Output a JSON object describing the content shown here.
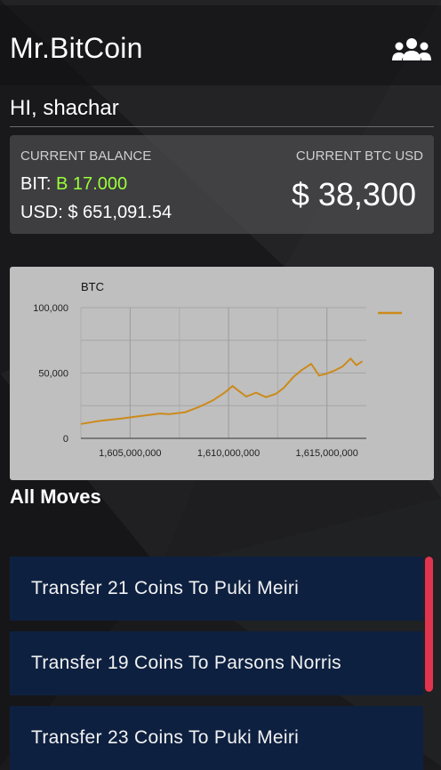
{
  "app": {
    "title": "Mr.BitCoin",
    "users_icon": "users-icon"
  },
  "greeting": "HI, shachar",
  "balance": {
    "heading": "CURRENT BALANCE",
    "bit_label": "BIT: ",
    "bit_value": "B 17.000",
    "usd_text": "USD: $ 651,091.54",
    "rate_heading": "CURRENT BTC USD",
    "rate_value": "$ 38,300"
  },
  "chart_data": {
    "type": "line",
    "title": "BTC",
    "series_color": "#cc8a1a",
    "xlim": [
      1602500000,
      1617000000
    ],
    "ylim": [
      0,
      100000
    ],
    "x_ticks": [
      1605000000,
      1610000000,
      1615000000
    ],
    "x_tick_labels": [
      "1,605,000,000",
      "1,610,000,000",
      "1,615,000,000"
    ],
    "y_ticks": [
      0,
      50000,
      100000
    ],
    "y_tick_labels": [
      "0",
      "50,000",
      "100,000"
    ],
    "grid": true,
    "legend": "top-right",
    "x": [
      1602500000,
      1603500000,
      1604500000,
      1605500000,
      1606500000,
      1607000000,
      1607800000,
      1608500000,
      1609200000,
      1609800000,
      1610200000,
      1610500000,
      1610900000,
      1611400000,
      1611900000,
      1612400000,
      1612800000,
      1613300000,
      1613700000,
      1614200000,
      1614600000,
      1615000000,
      1615400000,
      1615800000,
      1616200000,
      1616500000,
      1616800000
    ],
    "values": [
      11000,
      13500,
      15000,
      17000,
      19000,
      18500,
      20000,
      24000,
      29000,
      35000,
      40000,
      36500,
      32000,
      35000,
      31500,
      34000,
      38500,
      47000,
      52000,
      57000,
      48000,
      49500,
      52000,
      55000,
      61000,
      56000,
      59000
    ]
  },
  "moves": {
    "title": "All Moves",
    "items": [
      {
        "label": "Transfer 21 Coins To Puki Meiri"
      },
      {
        "label": "Transfer 19 Coins To Parsons Norris"
      },
      {
        "label": "Transfer 23 Coins To Puki Meiri"
      }
    ]
  },
  "colors": {
    "accent_green": "#9bff3a",
    "scrollbar": "#e2344f",
    "move_bg": "#0e2040"
  }
}
